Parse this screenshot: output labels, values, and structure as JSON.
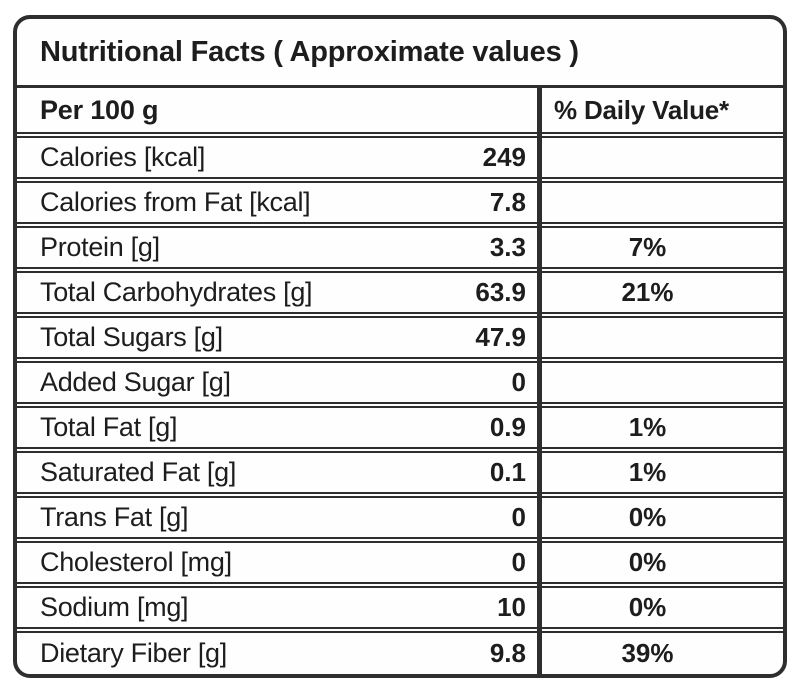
{
  "title": "Nutritional Facts ( Approximate values )",
  "header": {
    "col_measure": "Per 100 g",
    "col_dv": "% Daily Value*"
  },
  "rows": [
    {
      "label": "Calories [kcal]",
      "value": "249",
      "dv": ""
    },
    {
      "label": "Calories from Fat [kcal]",
      "value": "7.8",
      "dv": ""
    },
    {
      "label": "Protein [g]",
      "value": "3.3",
      "dv": "7%"
    },
    {
      "label": "Total Carbohydrates [g]",
      "value": "63.9",
      "dv": "21%"
    },
    {
      "label": "Total Sugars [g]",
      "value": "47.9",
      "dv": ""
    },
    {
      "label": "Added Sugar [g]",
      "value": "0",
      "dv": ""
    },
    {
      "label": "Total Fat [g]",
      "value": "0.9",
      "dv": "1%"
    },
    {
      "label": "Saturated Fat [g]",
      "value": "0.1",
      "dv": "1%"
    },
    {
      "label": "Trans Fat [g]",
      "value": "0",
      "dv": "0%"
    },
    {
      "label": "Cholesterol [mg]",
      "value": "0",
      "dv": "0%"
    },
    {
      "label": "Sodium [mg]",
      "value": "10",
      "dv": "0%"
    },
    {
      "label": "Dietary Fiber [g]",
      "value": "9.8",
      "dv": "39%"
    }
  ],
  "colors": {
    "border": "#2e2e2e",
    "text": "#1d1d1d",
    "background": "#fefefe"
  }
}
